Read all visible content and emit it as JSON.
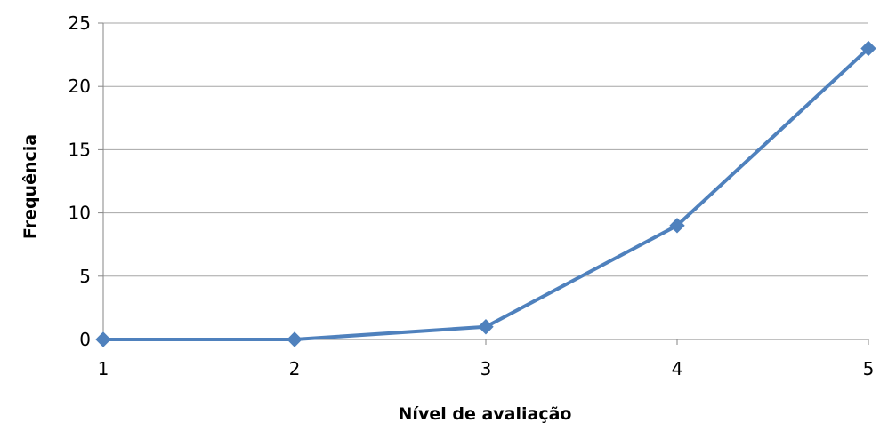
{
  "chart_data": {
    "type": "line",
    "title": "",
    "xlabel": "Nível de avaliação",
    "ylabel": "Frequência",
    "x": [
      1,
      2,
      3,
      4,
      5
    ],
    "x_tick_labels": [
      "1",
      "2",
      "3",
      "4",
      "5"
    ],
    "y_tick_labels": [
      "0",
      "5",
      "10",
      "15",
      "20",
      "25"
    ],
    "ylim": [
      0,
      25
    ],
    "y_ticks": [
      0,
      5,
      10,
      15,
      20,
      25
    ],
    "grid": true,
    "legend": "none",
    "series": [
      {
        "values": [
          0,
          0,
          1,
          9,
          23
        ]
      }
    ],
    "colors": {
      "series": "#4F81BD",
      "gridline": "#A6A6A6",
      "axis": "#868686"
    }
  }
}
